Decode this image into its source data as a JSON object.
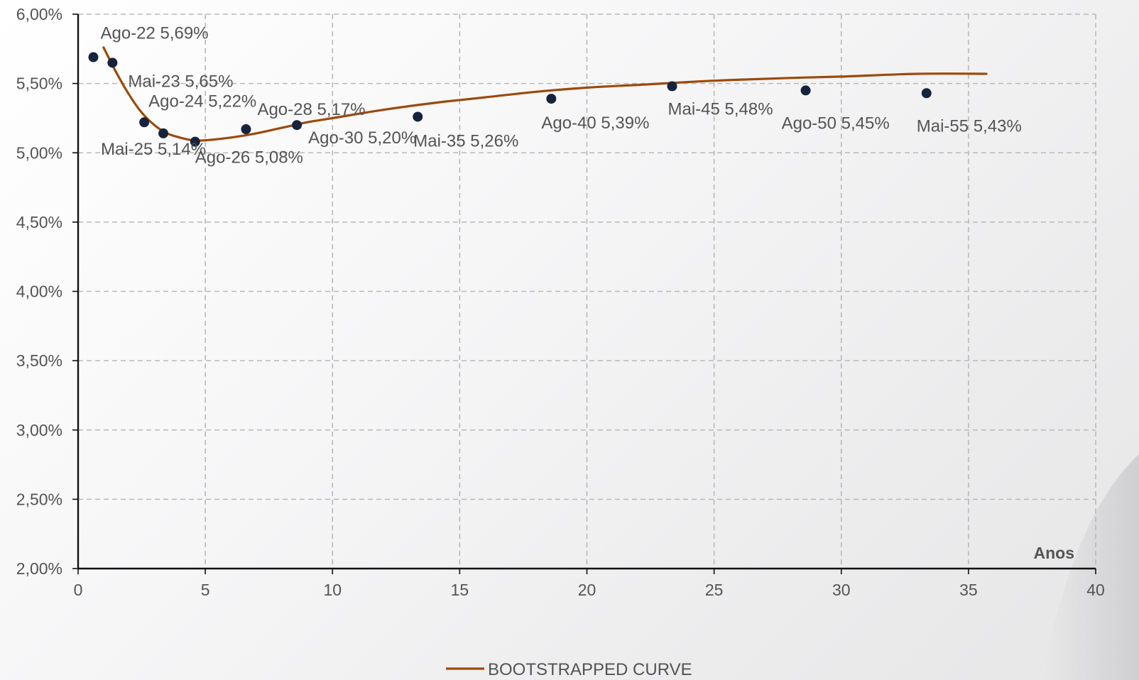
{
  "chart_data": {
    "type": "line",
    "title": "",
    "xlabel": "Anos",
    "ylabel": "",
    "xlim": [
      0,
      40
    ],
    "ylim": [
      2.0,
      6.0
    ],
    "x_ticks": [
      0,
      5,
      10,
      15,
      20,
      25,
      30,
      35,
      40
    ],
    "x_tick_labels": [
      "0",
      "5",
      "10",
      "15",
      "20",
      "25",
      "30",
      "35",
      "40"
    ],
    "y_ticks": [
      2.0,
      2.5,
      3.0,
      3.5,
      4.0,
      4.5,
      5.0,
      5.5,
      6.0
    ],
    "y_tick_labels": [
      "2,00%",
      "2,50%",
      "3,00%",
      "3,50%",
      "4,00%",
      "4,50%",
      "5,00%",
      "5,50%",
      "6,00%"
    ],
    "grid": true,
    "legend": {
      "position": "bottom-center",
      "entries": [
        "BOOTSTRAPPED CURVE"
      ]
    },
    "colors": {
      "curve": "#9b4a0c",
      "points": "#15233d",
      "grid": "#b9b9b9",
      "axis": "#111111",
      "text": "#545454"
    },
    "series": [
      {
        "name": "",
        "kind": "scatter",
        "points": [
          {
            "x": 0.6,
            "y": 5.69,
            "label": "Ago-22 5,69%"
          },
          {
            "x": 1.35,
            "y": 5.65,
            "label": "Mai-23 5,65%"
          },
          {
            "x": 2.6,
            "y": 5.22,
            "label": "Ago-24 5,22%"
          },
          {
            "x": 3.35,
            "y": 5.14,
            "label": "Mai-25 5,14%"
          },
          {
            "x": 4.6,
            "y": 5.08,
            "label": "Ago-26 5,08%"
          },
          {
            "x": 6.6,
            "y": 5.17,
            "label": "Ago-28 5,17%"
          },
          {
            "x": 8.6,
            "y": 5.2,
            "label": "Ago-30 5,20%"
          },
          {
            "x": 13.35,
            "y": 5.26,
            "label": "Mai-35 5,26%"
          },
          {
            "x": 18.6,
            "y": 5.39,
            "label": "Ago-40 5,39%"
          },
          {
            "x": 23.35,
            "y": 5.48,
            "label": "Mai-45 5,48%"
          },
          {
            "x": 28.6,
            "y": 5.45,
            "label": "Ago-50 5,45%"
          },
          {
            "x": 33.35,
            "y": 5.43,
            "label": "Mai-55 5,43%"
          }
        ]
      },
      {
        "name": "BOOTSTRAPPED CURVE",
        "kind": "line",
        "x": [
          1.0,
          1.5,
          2.0,
          2.5,
          3.0,
          3.5,
          4.0,
          4.5,
          5.0,
          6.0,
          7.0,
          8.0,
          9.0,
          10.0,
          12.0,
          14.0,
          16.0,
          18.0,
          20.0,
          22.0,
          25.0,
          28.0,
          30.0,
          33.0,
          35.7
        ],
        "y": [
          5.76,
          5.58,
          5.42,
          5.29,
          5.2,
          5.14,
          5.11,
          5.09,
          5.09,
          5.11,
          5.14,
          5.18,
          5.22,
          5.25,
          5.31,
          5.36,
          5.4,
          5.44,
          5.47,
          5.49,
          5.52,
          5.54,
          5.55,
          5.57,
          5.57
        ]
      }
    ]
  }
}
